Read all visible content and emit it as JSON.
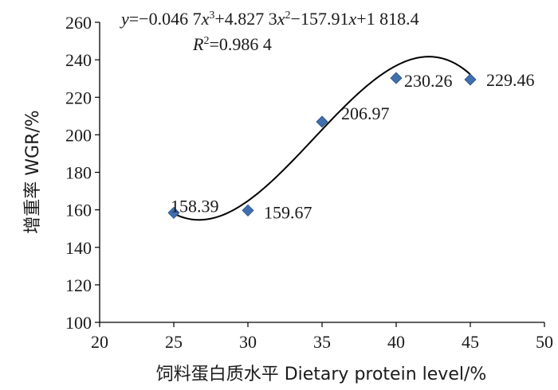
{
  "chart_data": {
    "type": "scatter",
    "x": [
      25,
      30,
      35,
      40,
      45
    ],
    "y": [
      158.39,
      159.67,
      206.97,
      230.26,
      229.46
    ],
    "point_labels": [
      "158.39",
      "159.67",
      "206.97",
      "230.26",
      "229.46"
    ],
    "xlabel": "饲料蛋白质水平  Dietary protein level/%",
    "ylabel": "增重率  WGR/%",
    "xlim": [
      20,
      50
    ],
    "ylim": [
      100,
      260
    ],
    "x_ticks": [
      "20",
      "25",
      "30",
      "35",
      "40",
      "45",
      "50"
    ],
    "y_ticks": [
      "100",
      "120",
      "140",
      "160",
      "180",
      "200",
      "220",
      "240",
      "260"
    ],
    "grid": false,
    "marker": "diamond",
    "marker_color": "#3f6fae",
    "line_color": "#000000",
    "trendline": {
      "type": "polynomial",
      "coefficients": [
        -0.0467,
        4.8273,
        -157.91,
        1818.4
      ],
      "equation_parts": {
        "y": "y",
        "pre_x3": "=−0.046 7",
        "x3": "x",
        "sup3": "3",
        "pre_x2": "+4.827 3",
        "x2": "x",
        "sup2": "2",
        "pre_x1": "−157.91",
        "x1": "x",
        "post": "+1 818.4"
      },
      "r2_parts": {
        "r": "R",
        "sup": "2",
        "value": "=0.986 4"
      }
    }
  }
}
